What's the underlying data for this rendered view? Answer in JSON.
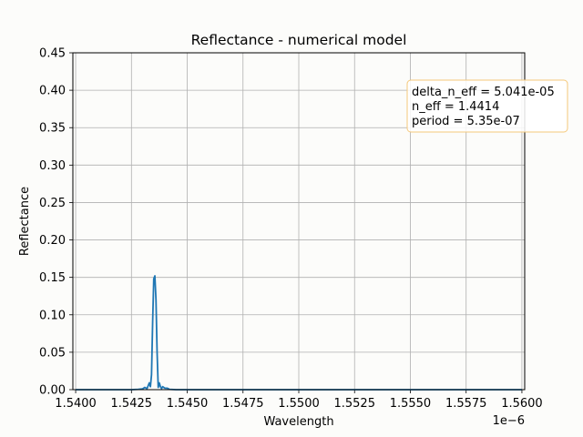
{
  "chart_data": {
    "type": "line",
    "title": "Reflectance - numerical model",
    "xlabel": "Wavelength",
    "ylabel": "Reflectance",
    "x_offset_label": "1e−6",
    "xlim": [
      1.539875,
      1.560125
    ],
    "ylim": [
      0,
      0.45
    ],
    "xticks": [
      1.54,
      1.5425,
      1.545,
      1.5475,
      1.55,
      1.5525,
      1.555,
      1.5575,
      1.56
    ],
    "xtick_labels": [
      "1.5400",
      "1.5425",
      "1.5450",
      "1.5475",
      "1.5500",
      "1.5525",
      "1.5550",
      "1.5575",
      "1.5600"
    ],
    "yticks": [
      0,
      0.05,
      0.1,
      0.15,
      0.2,
      0.25,
      0.3,
      0.35,
      0.4,
      0.45
    ],
    "ytick_labels": [
      "0.00",
      "0.05",
      "0.10",
      "0.15",
      "0.20",
      "0.25",
      "0.30",
      "0.35",
      "0.40",
      "0.45"
    ],
    "grid": true,
    "line_color": "#1f77b4",
    "series": [
      {
        "x": [
          1.54,
          1.5425,
          1.5428,
          1.543,
          1.5431,
          1.5432,
          1.5433,
          1.54335,
          1.5434,
          1.54345,
          1.5435,
          1.54355,
          1.5436,
          1.54365,
          1.5437,
          1.54375,
          1.5438,
          1.54385,
          1.5439,
          1.544,
          1.5441,
          1.5442,
          1.5445,
          1.56
        ],
        "y": [
          0,
          0,
          0.0005,
          0.001,
          0.003,
          0.0015,
          0.009,
          0.004,
          0.02,
          0.09,
          0.148,
          0.152,
          0.12,
          0.05,
          0.003,
          0.009,
          0.004,
          0.0015,
          0.004,
          0.002,
          0.002,
          0.0005,
          0,
          0
        ]
      }
    ],
    "annotation": {
      "lines": [
        "delta_n_eff = 5.041e-05",
        "n_eff = 1.4414",
        "period = 5.35e-07"
      ],
      "border_color": "#f5c87a"
    }
  }
}
